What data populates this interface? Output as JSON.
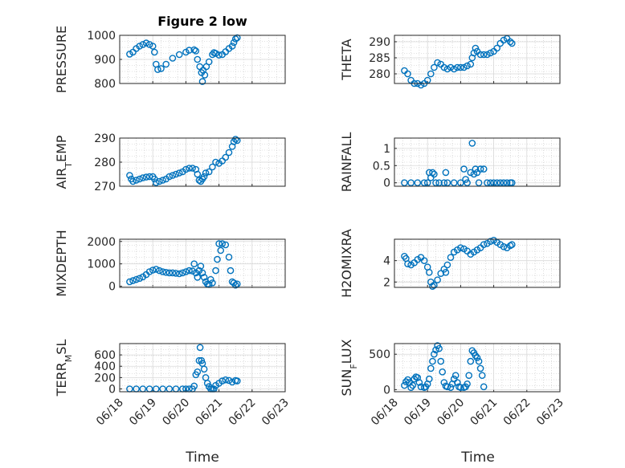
{
  "figure": {
    "title": "Figure 2 low"
  },
  "chart_data": [
    {
      "type": "scatter",
      "ylabel": "PRESSURE",
      "ylim": [
        800,
        1000
      ],
      "yticks": [
        800,
        900,
        1000
      ],
      "xlim": [
        0,
        5
      ],
      "points": [
        [
          0.3,
          922
        ],
        [
          0.4,
          930
        ],
        [
          0.5,
          945
        ],
        [
          0.6,
          955
        ],
        [
          0.7,
          962
        ],
        [
          0.8,
          968
        ],
        [
          0.9,
          962
        ],
        [
          1.0,
          955
        ],
        [
          1.05,
          930
        ],
        [
          1.1,
          880
        ],
        [
          1.15,
          858
        ],
        [
          1.25,
          862
        ],
        [
          1.4,
          880
        ],
        [
          1.6,
          905
        ],
        [
          1.8,
          920
        ],
        [
          2.0,
          930
        ],
        [
          2.1,
          938
        ],
        [
          2.25,
          940
        ],
        [
          2.3,
          935
        ],
        [
          2.35,
          900
        ],
        [
          2.42,
          870
        ],
        [
          2.47,
          845
        ],
        [
          2.5,
          808
        ],
        [
          2.52,
          855
        ],
        [
          2.57,
          835
        ],
        [
          2.62,
          870
        ],
        [
          2.7,
          890
        ],
        [
          2.8,
          920
        ],
        [
          2.85,
          928
        ],
        [
          2.9,
          925
        ],
        [
          3.0,
          918
        ],
        [
          3.1,
          920
        ],
        [
          3.2,
          932
        ],
        [
          3.3,
          945
        ],
        [
          3.4,
          955
        ],
        [
          3.45,
          970
        ],
        [
          3.5,
          985
        ],
        [
          3.55,
          990
        ]
      ]
    },
    {
      "type": "scatter",
      "ylabel": "THETA",
      "ylim": [
        277,
        292
      ],
      "yticks": [
        280,
        285,
        290
      ],
      "xlim": [
        0,
        5
      ],
      "points": [
        [
          0.3,
          281
        ],
        [
          0.4,
          280
        ],
        [
          0.5,
          278
        ],
        [
          0.6,
          277
        ],
        [
          0.7,
          277
        ],
        [
          0.8,
          276.5
        ],
        [
          0.9,
          277
        ],
        [
          1.0,
          278
        ],
        [
          1.1,
          280
        ],
        [
          1.2,
          282
        ],
        [
          1.3,
          283.5
        ],
        [
          1.4,
          283
        ],
        [
          1.5,
          282
        ],
        [
          1.6,
          281.5
        ],
        [
          1.7,
          282
        ],
        [
          1.8,
          281.5
        ],
        [
          1.9,
          282
        ],
        [
          2.0,
          282
        ],
        [
          2.1,
          282
        ],
        [
          2.2,
          282.5
        ],
        [
          2.3,
          283
        ],
        [
          2.35,
          285
        ],
        [
          2.4,
          286.5
        ],
        [
          2.45,
          288
        ],
        [
          2.5,
          287
        ],
        [
          2.6,
          286
        ],
        [
          2.7,
          286
        ],
        [
          2.8,
          286
        ],
        [
          2.9,
          286.5
        ],
        [
          3.0,
          287
        ],
        [
          3.1,
          288
        ],
        [
          3.2,
          289.5
        ],
        [
          3.3,
          290.5
        ],
        [
          3.4,
          291
        ],
        [
          3.5,
          290
        ],
        [
          3.55,
          289.5
        ]
      ]
    },
    {
      "type": "scatter",
      "ylabel": "AIR_TEMP",
      "ylim": [
        270,
        290
      ],
      "yticks": [
        270,
        280,
        290
      ],
      "xlim": [
        0,
        5
      ],
      "points": [
        [
          0.3,
          274.5
        ],
        [
          0.35,
          273
        ],
        [
          0.4,
          272
        ],
        [
          0.5,
          272.5
        ],
        [
          0.6,
          273
        ],
        [
          0.7,
          273.5
        ],
        [
          0.8,
          273.8
        ],
        [
          0.9,
          274
        ],
        [
          1.0,
          274
        ],
        [
          1.05,
          273
        ],
        [
          1.1,
          271.5
        ],
        [
          1.2,
          272
        ],
        [
          1.3,
          272.5
        ],
        [
          1.4,
          273
        ],
        [
          1.5,
          274
        ],
        [
          1.6,
          274.5
        ],
        [
          1.7,
          275
        ],
        [
          1.8,
          275.5
        ],
        [
          1.9,
          276
        ],
        [
          2.0,
          277
        ],
        [
          2.1,
          277.5
        ],
        [
          2.2,
          277.5
        ],
        [
          2.3,
          277
        ],
        [
          2.35,
          275
        ],
        [
          2.4,
          272.5
        ],
        [
          2.45,
          272
        ],
        [
          2.5,
          273
        ],
        [
          2.55,
          274
        ],
        [
          2.6,
          275.5
        ],
        [
          2.7,
          276
        ],
        [
          2.8,
          278
        ],
        [
          2.9,
          280
        ],
        [
          3.0,
          279.5
        ],
        [
          3.1,
          280.5
        ],
        [
          3.2,
          282
        ],
        [
          3.3,
          284
        ],
        [
          3.4,
          286.5
        ],
        [
          3.45,
          288.5
        ],
        [
          3.5,
          289.5
        ],
        [
          3.55,
          289
        ]
      ]
    },
    {
      "type": "scatter",
      "ylabel": "RAINFALL",
      "ylim": [
        -0.1,
        1.3
      ],
      "yticks": [
        0,
        0.5,
        1
      ],
      "xlim": [
        0,
        5
      ],
      "points": [
        [
          0.3,
          0
        ],
        [
          0.5,
          0
        ],
        [
          0.7,
          0
        ],
        [
          0.9,
          0
        ],
        [
          1.0,
          0
        ],
        [
          1.05,
          0.3
        ],
        [
          1.1,
          0.15
        ],
        [
          1.15,
          0.3
        ],
        [
          1.2,
          0.25
        ],
        [
          1.25,
          0
        ],
        [
          1.35,
          0
        ],
        [
          1.5,
          0
        ],
        [
          1.55,
          0.3
        ],
        [
          1.6,
          0
        ],
        [
          1.8,
          0
        ],
        [
          2.0,
          0
        ],
        [
          2.1,
          0.4
        ],
        [
          2.15,
          0.1
        ],
        [
          2.2,
          0
        ],
        [
          2.3,
          0.3
        ],
        [
          2.35,
          1.15
        ],
        [
          2.4,
          0.25
        ],
        [
          2.45,
          0.4
        ],
        [
          2.5,
          0.3
        ],
        [
          2.55,
          0
        ],
        [
          2.6,
          0.4
        ],
        [
          2.7,
          0.4
        ],
        [
          2.8,
          0
        ],
        [
          2.9,
          0
        ],
        [
          3.0,
          0
        ],
        [
          3.1,
          0
        ],
        [
          3.2,
          0
        ],
        [
          3.3,
          0
        ],
        [
          3.4,
          0
        ],
        [
          3.5,
          0
        ],
        [
          3.55,
          0
        ]
      ]
    },
    {
      "type": "scatter",
      "ylabel": "MIXDEPTH",
      "ylim": [
        -50,
        2100
      ],
      "yticks": [
        0,
        1000,
        2000
      ],
      "xlim": [
        0,
        5
      ],
      "points": [
        [
          0.3,
          200
        ],
        [
          0.4,
          250
        ],
        [
          0.5,
          300
        ],
        [
          0.6,
          350
        ],
        [
          0.7,
          420
        ],
        [
          0.8,
          520
        ],
        [
          0.9,
          650
        ],
        [
          1.0,
          720
        ],
        [
          1.1,
          760
        ],
        [
          1.2,
          700
        ],
        [
          1.3,
          650
        ],
        [
          1.4,
          620
        ],
        [
          1.5,
          600
        ],
        [
          1.6,
          600
        ],
        [
          1.7,
          580
        ],
        [
          1.8,
          560
        ],
        [
          1.9,
          600
        ],
        [
          2.0,
          650
        ],
        [
          2.1,
          700
        ],
        [
          2.2,
          680
        ],
        [
          2.25,
          1000
        ],
        [
          2.3,
          600
        ],
        [
          2.35,
          400
        ],
        [
          2.4,
          700
        ],
        [
          2.45,
          900
        ],
        [
          2.5,
          600
        ],
        [
          2.55,
          400
        ],
        [
          2.6,
          200
        ],
        [
          2.65,
          100
        ],
        [
          2.7,
          80
        ],
        [
          2.75,
          300
        ],
        [
          2.8,
          150
        ],
        [
          2.9,
          700
        ],
        [
          2.95,
          1200
        ],
        [
          3.0,
          1900
        ],
        [
          3.05,
          1600
        ],
        [
          3.1,
          1900
        ],
        [
          3.2,
          1850
        ],
        [
          3.3,
          1300
        ],
        [
          3.35,
          700
        ],
        [
          3.4,
          200
        ],
        [
          3.45,
          150
        ],
        [
          3.5,
          50
        ],
        [
          3.55,
          100
        ]
      ]
    },
    {
      "type": "scatter",
      "ylabel": "H2OMIXRA",
      "ylim": [
        1.5,
        6
      ],
      "yticks": [
        2,
        4
      ],
      "xlim": [
        0,
        5
      ],
      "points": [
        [
          0.3,
          4.4
        ],
        [
          0.35,
          4.2
        ],
        [
          0.4,
          3.7
        ],
        [
          0.5,
          3.6
        ],
        [
          0.6,
          3.8
        ],
        [
          0.7,
          4.1
        ],
        [
          0.8,
          4.3
        ],
        [
          0.9,
          4.0
        ],
        [
          1.0,
          3.4
        ],
        [
          1.05,
          2.9
        ],
        [
          1.1,
          2.0
        ],
        [
          1.15,
          1.6
        ],
        [
          1.2,
          1.7
        ],
        [
          1.3,
          2.2
        ],
        [
          1.4,
          2.8
        ],
        [
          1.5,
          3.2
        ],
        [
          1.55,
          2.9
        ],
        [
          1.6,
          3.6
        ],
        [
          1.7,
          4.3
        ],
        [
          1.8,
          4.8
        ],
        [
          1.9,
          5.0
        ],
        [
          2.0,
          5.2
        ],
        [
          2.1,
          5.1
        ],
        [
          2.2,
          4.9
        ],
        [
          2.3,
          4.6
        ],
        [
          2.4,
          4.8
        ],
        [
          2.5,
          5.0
        ],
        [
          2.6,
          5.2
        ],
        [
          2.7,
          5.5
        ],
        [
          2.8,
          5.6
        ],
        [
          2.9,
          5.8
        ],
        [
          3.0,
          5.9
        ],
        [
          3.1,
          5.7
        ],
        [
          3.2,
          5.5
        ],
        [
          3.3,
          5.3
        ],
        [
          3.4,
          5.2
        ],
        [
          3.5,
          5.4
        ],
        [
          3.55,
          5.5
        ]
      ]
    },
    {
      "type": "scatter",
      "ylabel": "TERR_MSL",
      "ylim": [
        -50,
        800
      ],
      "yticks": [
        0,
        200,
        400,
        600
      ],
      "xlim": [
        0,
        5
      ],
      "points": [
        [
          0.3,
          0
        ],
        [
          0.5,
          0
        ],
        [
          0.7,
          0
        ],
        [
          0.9,
          0
        ],
        [
          1.1,
          0
        ],
        [
          1.3,
          0
        ],
        [
          1.5,
          0
        ],
        [
          1.7,
          0
        ],
        [
          1.9,
          0
        ],
        [
          2.0,
          0
        ],
        [
          2.1,
          0
        ],
        [
          2.2,
          0
        ],
        [
          2.25,
          50
        ],
        [
          2.3,
          250
        ],
        [
          2.35,
          300
        ],
        [
          2.4,
          500
        ],
        [
          2.43,
          730
        ],
        [
          2.47,
          500
        ],
        [
          2.5,
          450
        ],
        [
          2.55,
          350
        ],
        [
          2.6,
          200
        ],
        [
          2.65,
          100
        ],
        [
          2.7,
          40
        ],
        [
          2.75,
          0
        ],
        [
          2.8,
          0
        ],
        [
          2.85,
          0
        ],
        [
          2.9,
          60
        ],
        [
          3.0,
          100
        ],
        [
          3.1,
          140
        ],
        [
          3.2,
          160
        ],
        [
          3.3,
          150
        ],
        [
          3.4,
          120
        ],
        [
          3.5,
          150
        ],
        [
          3.55,
          140
        ]
      ]
    },
    {
      "type": "scatter",
      "ylabel": "SUN_FLUX",
      "ylim": [
        -30,
        650
      ],
      "yticks": [
        0,
        500
      ],
      "xlim": [
        0,
        5
      ],
      "points": [
        [
          0.3,
          60
        ],
        [
          0.35,
          110
        ],
        [
          0.4,
          140
        ],
        [
          0.45,
          100
        ],
        [
          0.5,
          30
        ],
        [
          0.55,
          60
        ],
        [
          0.6,
          150
        ],
        [
          0.65,
          180
        ],
        [
          0.7,
          170
        ],
        [
          0.75,
          100
        ],
        [
          0.8,
          40
        ],
        [
          0.9,
          30
        ],
        [
          0.95,
          40
        ],
        [
          1.0,
          80
        ],
        [
          1.05,
          150
        ],
        [
          1.1,
          300
        ],
        [
          1.15,
          400
        ],
        [
          1.2,
          500
        ],
        [
          1.25,
          560
        ],
        [
          1.3,
          620
        ],
        [
          1.35,
          580
        ],
        [
          1.4,
          400
        ],
        [
          1.45,
          250
        ],
        [
          1.5,
          100
        ],
        [
          1.55,
          50
        ],
        [
          1.6,
          40
        ],
        [
          1.7,
          30
        ],
        [
          1.75,
          80
        ],
        [
          1.8,
          150
        ],
        [
          1.85,
          200
        ],
        [
          1.9,
          100
        ],
        [
          1.95,
          40
        ],
        [
          2.0,
          30
        ],
        [
          2.1,
          30
        ],
        [
          2.15,
          40
        ],
        [
          2.2,
          80
        ],
        [
          2.25,
          200
        ],
        [
          2.3,
          400
        ],
        [
          2.35,
          550
        ],
        [
          2.4,
          520
        ],
        [
          2.45,
          480
        ],
        [
          2.5,
          450
        ],
        [
          2.55,
          400
        ],
        [
          2.6,
          300
        ],
        [
          2.65,
          200
        ],
        [
          2.7,
          40
        ]
      ]
    }
  ],
  "axes": {
    "xticks": [
      "06/18",
      "06/19",
      "06/20",
      "06/21",
      "06/22",
      "06/23"
    ],
    "xlabel": "Time"
  }
}
